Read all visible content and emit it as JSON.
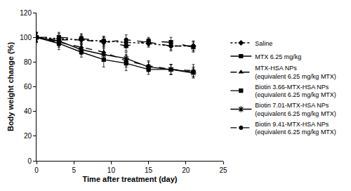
{
  "chart_data": {
    "type": "line",
    "x_label": "Time after treatment (day)",
    "y_label": "Body weight change (%)",
    "xlim": [
      0,
      25
    ],
    "xticks": [
      0,
      5,
      10,
      15,
      20,
      25
    ],
    "ylim": [
      0,
      120
    ],
    "yticks": [
      0,
      20,
      40,
      60,
      80,
      100,
      120
    ],
    "grid": false,
    "legend": "right",
    "x": [
      0,
      3,
      6,
      9,
      12,
      15,
      18,
      21
    ],
    "series": [
      {
        "name": "Saline",
        "color": "#000000",
        "line_style": "dotted",
        "marker": "diamond",
        "values": [
          100,
          99,
          98,
          97,
          96,
          95,
          93,
          93
        ],
        "error": [
          3,
          4,
          3,
          3,
          3,
          3,
          3,
          4
        ]
      },
      {
        "name": "MTX 6.25 mg/kg",
        "color": "#000000",
        "line_style": "solid",
        "marker": "square",
        "values": [
          100,
          95,
          88,
          82,
          79,
          74,
          74,
          72
        ],
        "error": [
          4,
          5,
          4,
          6,
          6,
          4,
          4,
          4
        ]
      },
      {
        "name": "MTX-HSA NPs (equivalent 6.25 mg/kg MTX)",
        "color": "#000000",
        "line_style": "dash",
        "marker": "triangle",
        "values": [
          100,
          96,
          92,
          88,
          81,
          77,
          74,
          73
        ],
        "error": [
          4,
          4,
          4,
          5,
          5,
          4,
          4,
          5
        ]
      },
      {
        "name": "Biotin 3.66-MTX-HSA NPs (equivalent 6.25 mg/kg MTX)",
        "color": "#000000",
        "line_style": "longdash",
        "marker": "square",
        "values": [
          100,
          100,
          99,
          97,
          93,
          97,
          96,
          92
        ],
        "error": [
          4,
          4,
          4,
          4,
          4,
          3,
          4,
          4
        ]
      },
      {
        "name": "Biotin 7.01-MTX-HSA NPs (equivalent 6.25 mg/kg MTX)",
        "color": "#000000",
        "line_style": "solid",
        "marker": "asterisk",
        "values": [
          100,
          97,
          90,
          86,
          83,
          76,
          74,
          71
        ],
        "error": [
          4,
          4,
          4,
          5,
          5,
          4,
          4,
          4
        ]
      },
      {
        "name": "Biotin 9.41-MTX-HSA NPs (equivalent 6.25 mg/kg MTX)",
        "color": "#000000",
        "line_style": "dash",
        "marker": "circle",
        "values": [
          100,
          98,
          98,
          96,
          98,
          96,
          93,
          93
        ],
        "error": [
          3,
          3,
          4,
          4,
          4,
          3,
          4,
          4
        ]
      }
    ]
  }
}
